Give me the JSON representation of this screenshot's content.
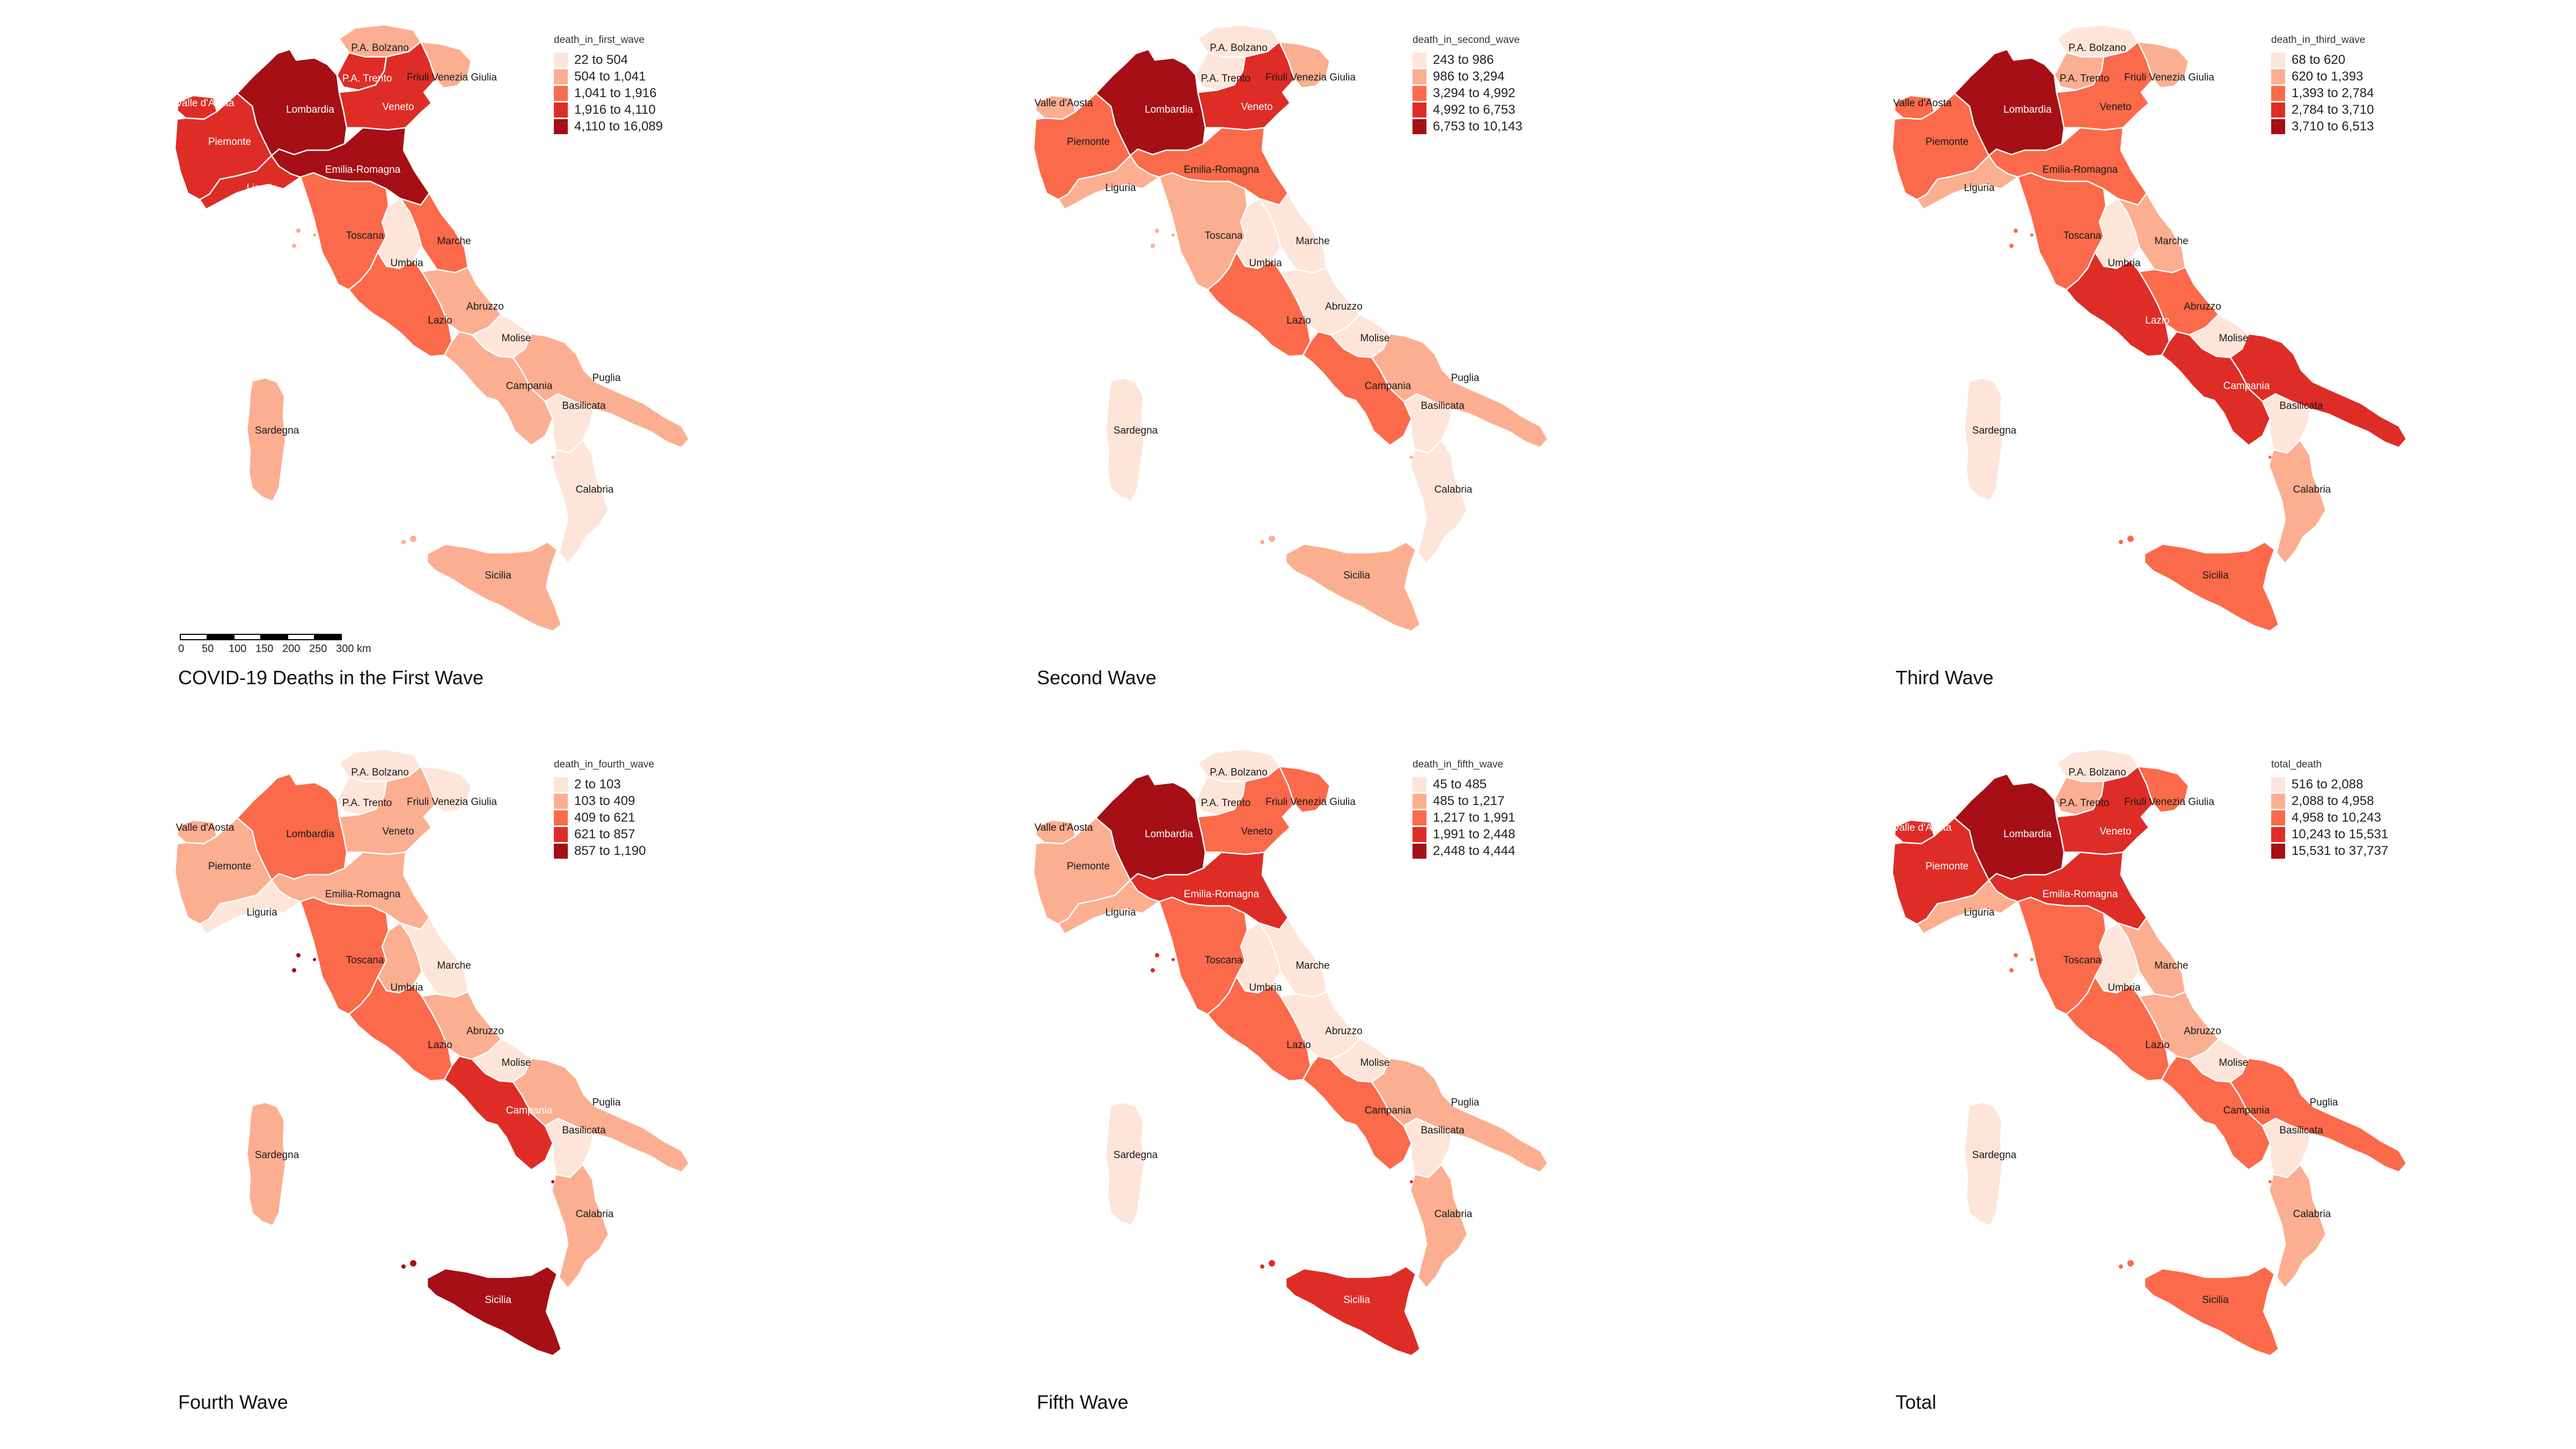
{
  "palette": [
    "#fee5d9",
    "#fcae91",
    "#fb6a4a",
    "#de2d26",
    "#a50f15"
  ],
  "region_names": {
    "vda": "Valle d'Aosta",
    "pie": "Piemonte",
    "lom": "Lombardia",
    "bz": "P.A. Bolzano",
    "tn": "P.A. Trento",
    "ven": "Veneto",
    "fvg": "Friuli Venezia Giulia",
    "lig": "Liguria",
    "emr": "Emilia-Romagna",
    "tos": "Toscana",
    "umb": "Umbria",
    "mar": "Marche",
    "laz": "Lazio",
    "abr": "Abruzzo",
    "mol": "Molise",
    "cam": "Campania",
    "pug": "Puglia",
    "bas": "Basilicata",
    "cal": "Calabria",
    "sic": "Sicilia",
    "sar": "Sardegna"
  },
  "scale_bar": {
    "labels": [
      "0",
      "50",
      "100",
      "150",
      "200",
      "250",
      "300 km"
    ]
  },
  "maps": [
    {
      "title": "COVID-19 Deaths in the First Wave",
      "legend_title": "death_in_first_wave",
      "legend": [
        "22 to 504",
        "504 to 1,041",
        "1,041 to 1,916",
        "1,916 to 4,110",
        "4,110 to 16,089"
      ],
      "classes": {
        "vda": 3,
        "pie": 3,
        "lom": 4,
        "bz": 1,
        "tn": 3,
        "ven": 3,
        "fvg": 1,
        "lig": 3,
        "emr": 4,
        "tos": 2,
        "umb": 0,
        "mar": 2,
        "laz": 2,
        "abr": 1,
        "mol": 0,
        "cam": 1,
        "pug": 1,
        "bas": 0,
        "cal": 0,
        "sic": 1,
        "sar": 1
      }
    },
    {
      "title": "Second Wave",
      "legend_title": "death_in_second_wave",
      "legend": [
        "243 to 986",
        "986 to 3,294",
        "3,294 to 4,992",
        "4,992 to 6,753",
        "6,753 to 10,143"
      ],
      "classes": {
        "vda": 1,
        "pie": 2,
        "lom": 4,
        "bz": 0,
        "tn": 0,
        "ven": 3,
        "fvg": 1,
        "lig": 1,
        "emr": 2,
        "tos": 1,
        "umb": 0,
        "mar": 0,
        "laz": 2,
        "abr": 0,
        "mol": 0,
        "cam": 2,
        "pug": 1,
        "bas": 0,
        "cal": 0,
        "sic": 1,
        "sar": 0
      }
    },
    {
      "title": "Third Wave",
      "legend_title": "death_in_third_wave",
      "legend": [
        "68 to 620",
        "620 to 1,393",
        "1,393 to 2,784",
        "2,784 to 3,710",
        "3,710 to 6,513"
      ],
      "classes": {
        "vda": 2,
        "pie": 2,
        "lom": 4,
        "bz": 0,
        "tn": 1,
        "ven": 2,
        "fvg": 1,
        "lig": 1,
        "emr": 2,
        "tos": 2,
        "umb": 0,
        "mar": 1,
        "laz": 3,
        "abr": 2,
        "mol": 0,
        "cam": 3,
        "pug": 3,
        "bas": 0,
        "cal": 1,
        "sic": 2,
        "sar": 0
      }
    },
    {
      "title": "Fourth Wave",
      "legend_title": "death_in_fourth_wave",
      "legend": [
        "2 to 103",
        "103 to 409",
        "409 to 621",
        "621 to 857",
        "857 to 1,190"
      ],
      "classes": {
        "vda": 1,
        "pie": 1,
        "lom": 2,
        "bz": 0,
        "tn": 0,
        "ven": 1,
        "fvg": 0,
        "lig": 0,
        "emr": 1,
        "tos": 2,
        "umb": 1,
        "mar": 0,
        "laz": 2,
        "abr": 1,
        "mol": 0,
        "cam": 3,
        "pug": 1,
        "bas": 0,
        "cal": 1,
        "sic": 4,
        "sar": 1
      }
    },
    {
      "title": "Fifth Wave",
      "legend_title": "death_in_fifth_wave",
      "legend": [
        "45 to 485",
        "485 to 1,217",
        "1,217 to 1,991",
        "1,991 to 2,448",
        "2,448 to 4,444"
      ],
      "classes": {
        "vda": 1,
        "pie": 1,
        "lom": 4,
        "bz": 0,
        "tn": 0,
        "ven": 2,
        "fvg": 2,
        "lig": 1,
        "emr": 3,
        "tos": 2,
        "umb": 0,
        "mar": 0,
        "laz": 2,
        "abr": 0,
        "mol": 0,
        "cam": 2,
        "pug": 1,
        "bas": 0,
        "cal": 1,
        "sic": 3,
        "sar": 0
      }
    },
    {
      "title": "Total",
      "legend_title": "total_death",
      "legend": [
        "516 to 2,088",
        "2,088 to 4,958",
        "4,958 to 10,243",
        "10,243 to 15,531",
        "15,531 to 37,737"
      ],
      "classes": {
        "vda": 3,
        "pie": 3,
        "lom": 4,
        "bz": 0,
        "tn": 1,
        "ven": 3,
        "fvg": 2,
        "lig": 1,
        "emr": 3,
        "tos": 2,
        "umb": 0,
        "mar": 1,
        "laz": 2,
        "abr": 1,
        "mol": 0,
        "cam": 2,
        "pug": 2,
        "bas": 0,
        "cal": 1,
        "sic": 2,
        "sar": 0
      }
    }
  ]
}
